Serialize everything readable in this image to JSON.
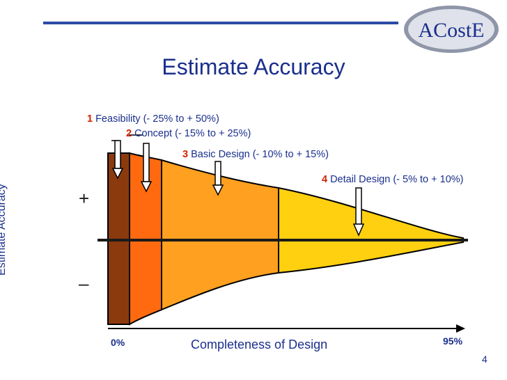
{
  "slide": {
    "title": "Estimate Accuracy",
    "logo": "ACostE",
    "page_number": "4"
  },
  "colors": {
    "title": "#1a2f8c",
    "accent_number": "#d22000",
    "rule": "#2b4ba5",
    "stage1": "#8b3a0e",
    "stage2": "#ff6a10",
    "stage3": "#ffa020",
    "stage4": "#ffd010"
  },
  "stages": [
    {
      "num": "1",
      "text": "Feasibility (- 25% to + 50%)"
    },
    {
      "num": "2",
      "text": "Concept (- 15% to + 25%)"
    },
    {
      "num": "3",
      "text": "Basic Design  (- 10% to + 15%)"
    },
    {
      "num": "4",
      "text": "Detail Design (- 5% to + 10%)"
    }
  ],
  "axes": {
    "y_label": "Estimate Accuracy",
    "plus": "+",
    "minus": "–",
    "x_label": "Completeness of Design",
    "x_start": "0%",
    "x_end": "95%"
  }
}
